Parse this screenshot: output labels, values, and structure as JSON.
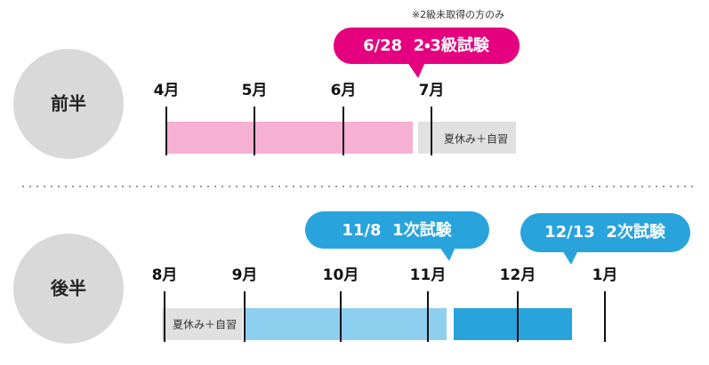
{
  "sections": [
    {
      "label": "前半",
      "months": [
        "4月",
        "5月",
        "6月",
        "7月"
      ],
      "break_label": "夏休み＋自習",
      "callouts": [
        "6/28  2・3級試験"
      ],
      "note": "※2級未取得の方のみ"
    },
    {
      "label": "後半",
      "months": [
        "8月",
        "9月",
        "10月",
        "11月",
        "12月",
        "1月"
      ],
      "break_label": "夏休み＋自習",
      "callouts": [
        "11/8  1次試験",
        "12/13  2次試験"
      ]
    }
  ]
}
